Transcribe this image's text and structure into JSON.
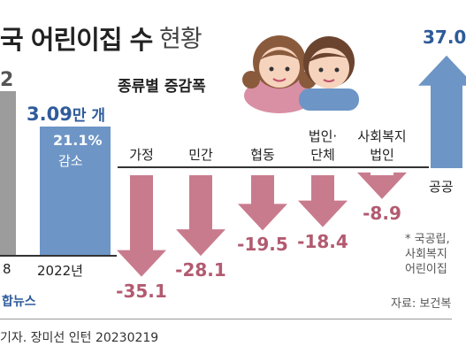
{
  "title": {
    "main": "국 어린이집 수",
    "sub": "현황"
  },
  "total_comparison": {
    "bar_2012_value": "2",
    "bar_2022_value": "3.09",
    "bar_2022_unit": "만 개",
    "change_pct": "21.1%",
    "change_label": "감소",
    "year_2012": "8",
    "year_2022": "2022년"
  },
  "subheading": "종류별 증감폭",
  "chart_data": {
    "type": "bar",
    "title": "종류별 증감폭",
    "categories": [
      "가정",
      "민간",
      "협동",
      "법인·단체",
      "사회복지 법인",
      "공공"
    ],
    "values": [
      -35.1,
      -28.1,
      -19.5,
      -18.4,
      -8.9,
      37.0
    ],
    "value_labels": [
      "-35.1",
      "-28.1",
      "-19.5",
      "-18.4",
      "-8.9",
      "37.0"
    ],
    "category_lines": [
      [
        "가정"
      ],
      [
        "민간"
      ],
      [
        "협동"
      ],
      [
        "법인·",
        "단체"
      ],
      [
        "사회복지",
        "법인"
      ],
      [
        "공공"
      ]
    ],
    "colors": {
      "decrease": "#c97b8e",
      "increase": "#6d95c6"
    }
  },
  "note_lines": [
    "* 국공립,",
    "사회복지",
    "어린이집"
  ],
  "source": "자료: 보건복",
  "logo": "합뉴스",
  "credit": "기자. 장미선 인턴  20230219",
  "colors": {
    "blue": "#2e5b9a",
    "pink": "#c97b8e",
    "gray": "#9c9c9c"
  }
}
